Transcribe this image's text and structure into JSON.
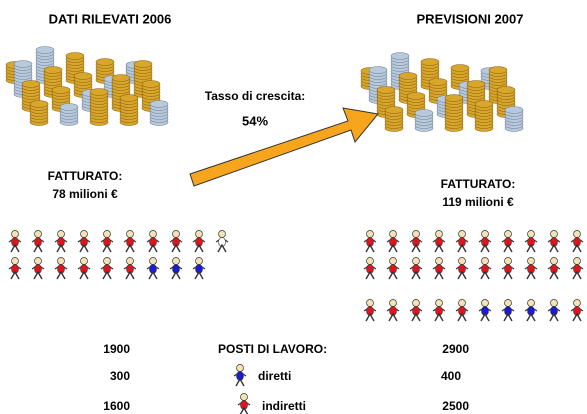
{
  "left": {
    "title": "DATI RILEVATI 2006",
    "revenue_label": "FATTURATO:",
    "revenue": "78 milioni €"
  },
  "right": {
    "title": "PREVISIONI 2007",
    "revenue_label": "FATTURATO:",
    "revenue": "119 milioni €"
  },
  "growth": {
    "label": "Tasso di crescita:",
    "value": "54%"
  },
  "jobs": {
    "title": "POSTI DI LAVORO:",
    "direct_label": "diretti",
    "indirect_label": "indiretti",
    "total_2006": "1900",
    "direct_2006": "300",
    "indirect_2006": "1600",
    "total_2007": "2900",
    "direct_2007": "400",
    "indirect_2007": "2500"
  }
}
